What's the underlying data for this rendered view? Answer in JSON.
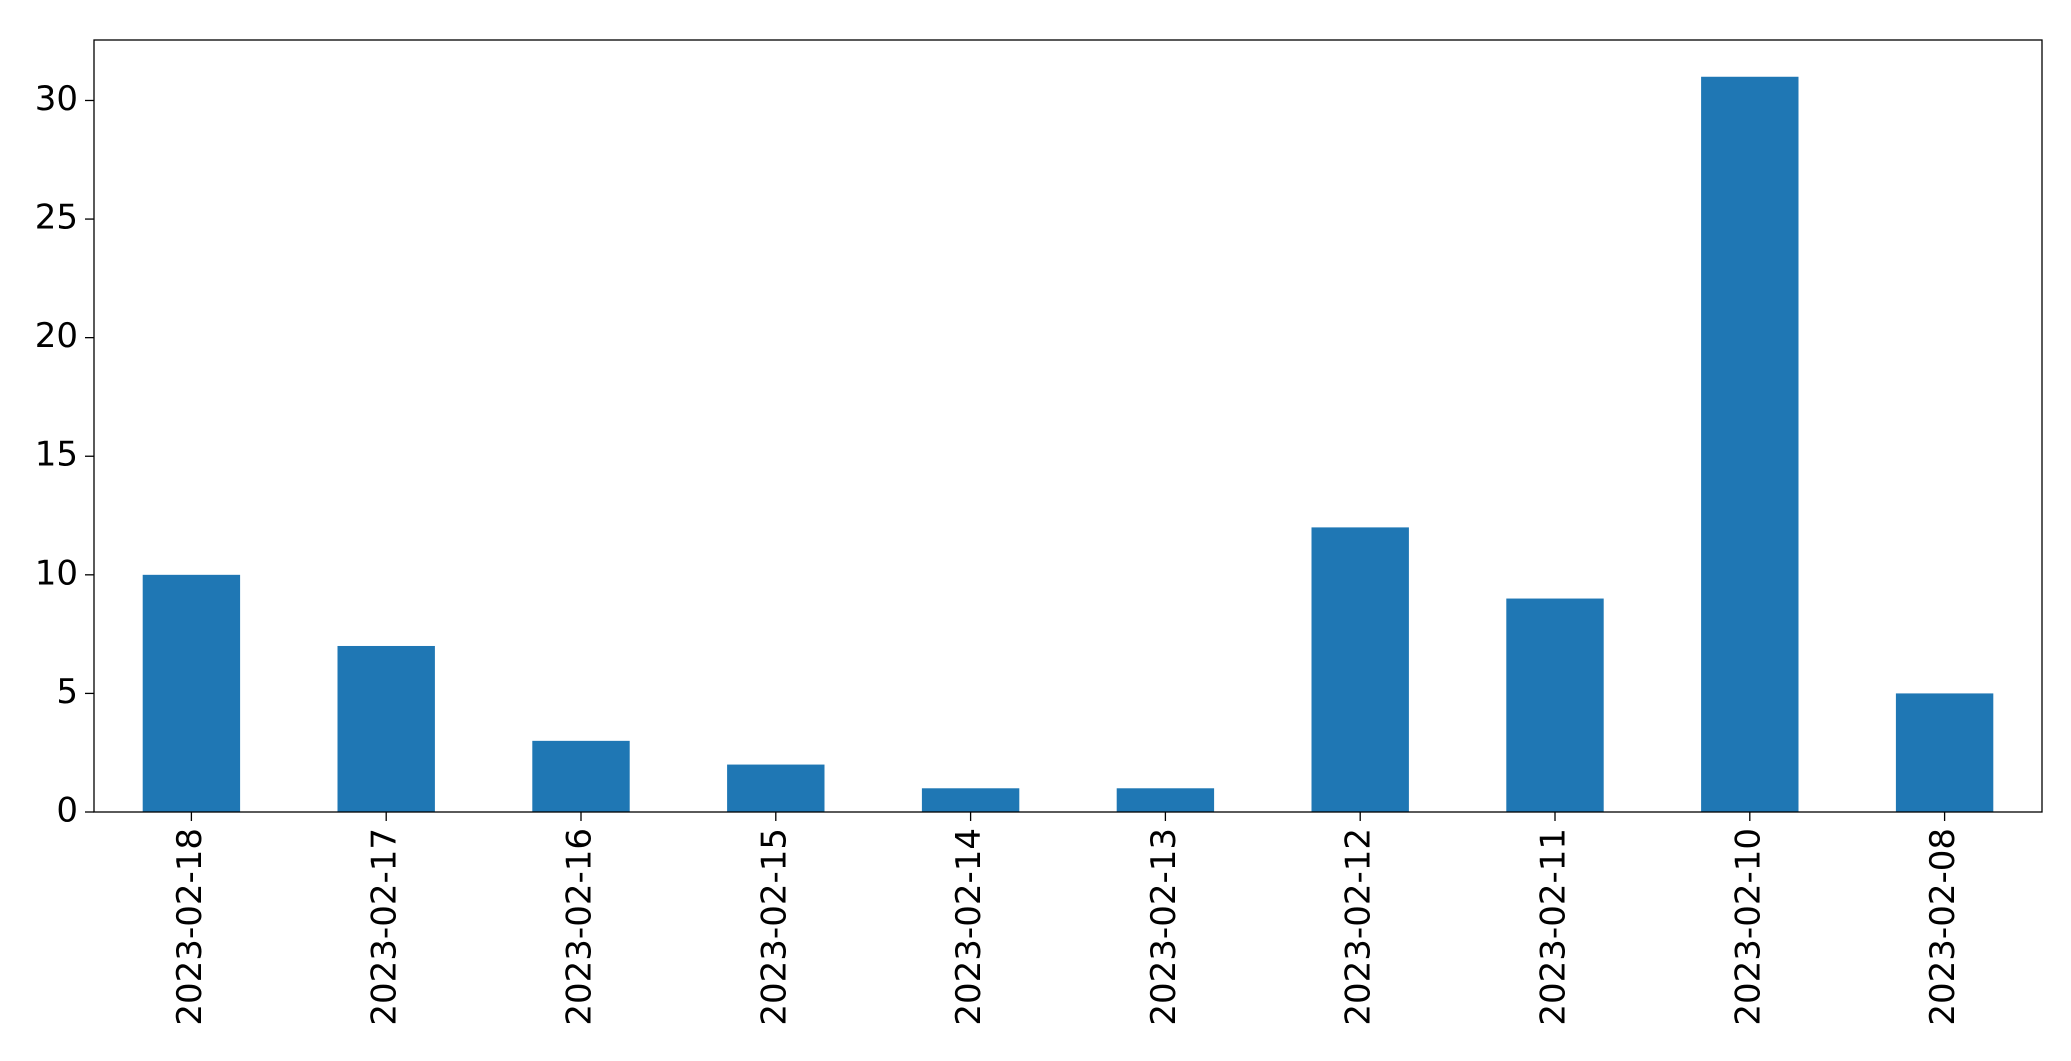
{
  "chart_data": {
    "type": "bar",
    "categories": [
      "2023-02-18",
      "2023-02-17",
      "2023-02-16",
      "2023-02-15",
      "2023-02-14",
      "2023-02-13",
      "2023-02-12",
      "2023-02-11",
      "2023-02-10",
      "2023-02-08"
    ],
    "values": [
      10,
      7,
      3,
      2,
      1,
      1,
      12,
      9,
      31,
      5
    ],
    "color": "#1f77b4",
    "ylim": [
      0,
      32.55
    ],
    "yticks": [
      0,
      5,
      10,
      15,
      20,
      25,
      30
    ],
    "grid": false
  }
}
